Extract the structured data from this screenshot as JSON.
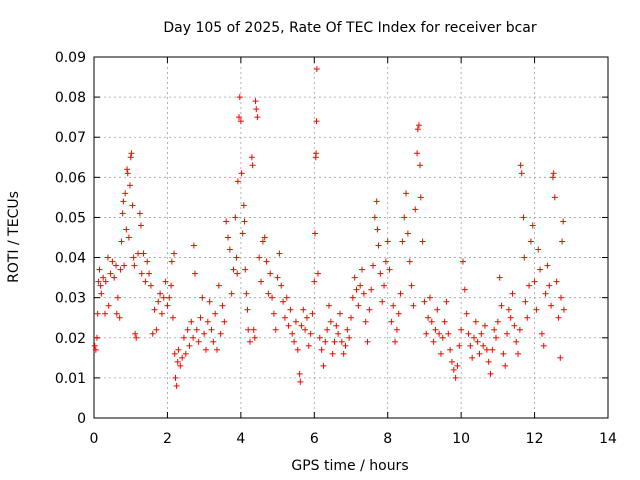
{
  "chart_data": {
    "type": "scatter",
    "title": "Day 105 of 2025, Rate Of TEC Index for receiver bcar",
    "xlabel": "GPS time / hours",
    "ylabel": "ROTI / TECUs",
    "xlim": [
      0,
      14
    ],
    "ylim": [
      0,
      0.09
    ],
    "x_ticks": [
      "0",
      "2",
      "4",
      "6",
      "8",
      "10",
      "12",
      "14"
    ],
    "y_ticks": [
      "0",
      "0.01",
      "0.02",
      "0.03",
      "0.04",
      "0.05",
      "0.06",
      "0.07",
      "0.08",
      "0.09"
    ],
    "grid": true,
    "marker": "+",
    "color": "#ff0000",
    "series": [
      {
        "points": [
          [
            0.02,
            0.018
          ],
          [
            0.05,
            0.017
          ],
          [
            0.08,
            0.02
          ],
          [
            0.1,
            0.026
          ],
          [
            0.12,
            0.034
          ],
          [
            0.15,
            0.037
          ],
          [
            0.18,
            0.033
          ],
          [
            0.2,
            0.031
          ],
          [
            0.25,
            0.035
          ],
          [
            0.3,
            0.026
          ],
          [
            0.32,
            0.034
          ],
          [
            0.38,
            0.04
          ],
          [
            0.4,
            0.028
          ],
          [
            0.45,
            0.036
          ],
          [
            0.5,
            0.039
          ],
          [
            0.55,
            0.035
          ],
          [
            0.6,
            0.038
          ],
          [
            0.62,
            0.026
          ],
          [
            0.65,
            0.03
          ],
          [
            0.7,
            0.025
          ],
          [
            0.72,
            0.037
          ],
          [
            0.75,
            0.044
          ],
          [
            0.78,
            0.051
          ],
          [
            0.8,
            0.054
          ],
          [
            0.82,
            0.038
          ],
          [
            0.85,
            0.056
          ],
          [
            0.88,
            0.047
          ],
          [
            0.9,
            0.062
          ],
          [
            0.92,
            0.061
          ],
          [
            0.95,
            0.045
          ],
          [
            0.98,
            0.058
          ],
          [
            1.0,
            0.065
          ],
          [
            1.02,
            0.066
          ],
          [
            1.05,
            0.053
          ],
          [
            1.08,
            0.04
          ],
          [
            1.1,
            0.038
          ],
          [
            1.12,
            0.021
          ],
          [
            1.15,
            0.02
          ],
          [
            1.2,
            0.041
          ],
          [
            1.25,
            0.051
          ],
          [
            1.28,
            0.048
          ],
          [
            1.3,
            0.036
          ],
          [
            1.35,
            0.041
          ],
          [
            1.4,
            0.034
          ],
          [
            1.45,
            0.039
          ],
          [
            1.5,
            0.036
          ],
          [
            1.55,
            0.033
          ],
          [
            1.6,
            0.021
          ],
          [
            1.65,
            0.027
          ],
          [
            1.7,
            0.022
          ],
          [
            1.75,
            0.029
          ],
          [
            1.8,
            0.031
          ],
          [
            1.85,
            0.026
          ],
          [
            1.9,
            0.03
          ],
          [
            1.95,
            0.034
          ],
          [
            2.0,
            0.028
          ],
          [
            2.05,
            0.03
          ],
          [
            2.1,
            0.033
          ],
          [
            2.12,
            0.039
          ],
          [
            2.15,
            0.025
          ],
          [
            2.18,
            0.041
          ],
          [
            2.2,
            0.016
          ],
          [
            2.22,
            0.01
          ],
          [
            2.25,
            0.008
          ],
          [
            2.28,
            0.014
          ],
          [
            2.3,
            0.017
          ],
          [
            2.35,
            0.013
          ],
          [
            2.4,
            0.015
          ],
          [
            2.45,
            0.02
          ],
          [
            2.5,
            0.016
          ],
          [
            2.55,
            0.022
          ],
          [
            2.6,
            0.018
          ],
          [
            2.65,
            0.024
          ],
          [
            2.7,
            0.02
          ],
          [
            2.72,
            0.043
          ],
          [
            2.75,
            0.036
          ],
          [
            2.8,
            0.022
          ],
          [
            2.85,
            0.019
          ],
          [
            2.9,
            0.025
          ],
          [
            2.95,
            0.03
          ],
          [
            3.0,
            0.021
          ],
          [
            3.05,
            0.017
          ],
          [
            3.1,
            0.024
          ],
          [
            3.15,
            0.029
          ],
          [
            3.2,
            0.022
          ],
          [
            3.25,
            0.019
          ],
          [
            3.3,
            0.026
          ],
          [
            3.35,
            0.017
          ],
          [
            3.4,
            0.033
          ],
          [
            3.45,
            0.021
          ],
          [
            3.5,
            0.028
          ],
          [
            3.55,
            0.024
          ],
          [
            3.6,
            0.049
          ],
          [
            3.65,
            0.045
          ],
          [
            3.7,
            0.042
          ],
          [
            3.75,
            0.031
          ],
          [
            3.8,
            0.037
          ],
          [
            3.85,
            0.05
          ],
          [
            3.88,
            0.04
          ],
          [
            3.9,
            0.036
          ],
          [
            3.92,
            0.059
          ],
          [
            3.95,
            0.075
          ],
          [
            3.97,
            0.08
          ],
          [
            4.0,
            0.074
          ],
          [
            4.02,
            0.061
          ],
          [
            4.05,
            0.046
          ],
          [
            4.08,
            0.053
          ],
          [
            4.1,
            0.049
          ],
          [
            4.12,
            0.037
          ],
          [
            4.15,
            0.031
          ],
          [
            4.18,
            0.027
          ],
          [
            4.2,
            0.022
          ],
          [
            4.25,
            0.019
          ],
          [
            4.3,
            0.065
          ],
          [
            4.32,
            0.063
          ],
          [
            4.35,
            0.022
          ],
          [
            4.38,
            0.02
          ],
          [
            4.4,
            0.079
          ],
          [
            4.42,
            0.077
          ],
          [
            4.45,
            0.075
          ],
          [
            4.5,
            0.04
          ],
          [
            4.55,
            0.034
          ],
          [
            4.6,
            0.044
          ],
          [
            4.65,
            0.045
          ],
          [
            4.7,
            0.039
          ],
          [
            4.75,
            0.031
          ],
          [
            4.8,
            0.036
          ],
          [
            4.85,
            0.03
          ],
          [
            4.9,
            0.026
          ],
          [
            4.95,
            0.022
          ],
          [
            5.0,
            0.035
          ],
          [
            5.05,
            0.041
          ],
          [
            5.1,
            0.033
          ],
          [
            5.15,
            0.029
          ],
          [
            5.2,
            0.025
          ],
          [
            5.25,
            0.03
          ],
          [
            5.3,
            0.023
          ],
          [
            5.35,
            0.027
          ],
          [
            5.4,
            0.021
          ],
          [
            5.45,
            0.019
          ],
          [
            5.5,
            0.024
          ],
          [
            5.55,
            0.017
          ],
          [
            5.6,
            0.011
          ],
          [
            5.62,
            0.009
          ],
          [
            5.65,
            0.023
          ],
          [
            5.7,
            0.027
          ],
          [
            5.75,
            0.022
          ],
          [
            5.8,
            0.025
          ],
          [
            5.85,
            0.018
          ],
          [
            5.9,
            0.021
          ],
          [
            5.95,
            0.026
          ],
          [
            6.0,
            0.034
          ],
          [
            6.02,
            0.046
          ],
          [
            6.04,
            0.065
          ],
          [
            6.05,
            0.066
          ],
          [
            6.06,
            0.074
          ],
          [
            6.07,
            0.087
          ],
          [
            6.1,
            0.036
          ],
          [
            6.15,
            0.02
          ],
          [
            6.2,
            0.017
          ],
          [
            6.25,
            0.013
          ],
          [
            6.3,
            0.019
          ],
          [
            6.35,
            0.022
          ],
          [
            6.4,
            0.028
          ],
          [
            6.45,
            0.024
          ],
          [
            6.5,
            0.016
          ],
          [
            6.55,
            0.019
          ],
          [
            6.6,
            0.023
          ],
          [
            6.65,
            0.021
          ],
          [
            6.7,
            0.026
          ],
          [
            6.75,
            0.019
          ],
          [
            6.8,
            0.016
          ],
          [
            6.85,
            0.018
          ],
          [
            6.9,
            0.022
          ],
          [
            6.95,
            0.02
          ],
          [
            7.0,
            0.025
          ],
          [
            7.05,
            0.03
          ],
          [
            7.1,
            0.035
          ],
          [
            7.15,
            0.032
          ],
          [
            7.2,
            0.028
          ],
          [
            7.25,
            0.033
          ],
          [
            7.3,
            0.037
          ],
          [
            7.35,
            0.031
          ],
          [
            7.4,
            0.024
          ],
          [
            7.45,
            0.019
          ],
          [
            7.5,
            0.027
          ],
          [
            7.55,
            0.032
          ],
          [
            7.6,
            0.038
          ],
          [
            7.65,
            0.05
          ],
          [
            7.7,
            0.054
          ],
          [
            7.72,
            0.047
          ],
          [
            7.75,
            0.043
          ],
          [
            7.8,
            0.036
          ],
          [
            7.85,
            0.029
          ],
          [
            7.9,
            0.033
          ],
          [
            7.95,
            0.039
          ],
          [
            8.0,
            0.044
          ],
          [
            8.05,
            0.037
          ],
          [
            8.1,
            0.024
          ],
          [
            8.15,
            0.028
          ],
          [
            8.2,
            0.019
          ],
          [
            8.25,
            0.022
          ],
          [
            8.3,
            0.026
          ],
          [
            8.35,
            0.031
          ],
          [
            8.4,
            0.044
          ],
          [
            8.45,
            0.05
          ],
          [
            8.5,
            0.056
          ],
          [
            8.55,
            0.046
          ],
          [
            8.6,
            0.039
          ],
          [
            8.65,
            0.033
          ],
          [
            8.7,
            0.028
          ],
          [
            8.75,
            0.052
          ],
          [
            8.8,
            0.066
          ],
          [
            8.82,
            0.072
          ],
          [
            8.85,
            0.073
          ],
          [
            8.88,
            0.063
          ],
          [
            8.9,
            0.055
          ],
          [
            8.95,
            0.044
          ],
          [
            9.0,
            0.029
          ],
          [
            9.05,
            0.021
          ],
          [
            9.1,
            0.025
          ],
          [
            9.15,
            0.03
          ],
          [
            9.2,
            0.024
          ],
          [
            9.25,
            0.019
          ],
          [
            9.3,
            0.022
          ],
          [
            9.35,
            0.027
          ],
          [
            9.4,
            0.021
          ],
          [
            9.45,
            0.016
          ],
          [
            9.5,
            0.02
          ],
          [
            9.55,
            0.024
          ],
          [
            9.6,
            0.029
          ],
          [
            9.65,
            0.021
          ],
          [
            9.7,
            0.017
          ],
          [
            9.75,
            0.014
          ],
          [
            9.8,
            0.012
          ],
          [
            9.85,
            0.01
          ],
          [
            9.9,
            0.013
          ],
          [
            9.95,
            0.018
          ],
          [
            10.0,
            0.022
          ],
          [
            10.05,
            0.039
          ],
          [
            10.1,
            0.032
          ],
          [
            10.15,
            0.026
          ],
          [
            10.2,
            0.021
          ],
          [
            10.25,
            0.018
          ],
          [
            10.3,
            0.015
          ],
          [
            10.35,
            0.02
          ],
          [
            10.4,
            0.024
          ],
          [
            10.45,
            0.019
          ],
          [
            10.5,
            0.016
          ],
          [
            10.55,
            0.021
          ],
          [
            10.6,
            0.018
          ],
          [
            10.65,
            0.023
          ],
          [
            10.7,
            0.017
          ],
          [
            10.75,
            0.014
          ],
          [
            10.8,
            0.011
          ],
          [
            10.85,
            0.017
          ],
          [
            10.9,
            0.022
          ],
          [
            10.95,
            0.02
          ],
          [
            11.0,
            0.024
          ],
          [
            11.05,
            0.035
          ],
          [
            11.1,
            0.028
          ],
          [
            11.15,
            0.016
          ],
          [
            11.2,
            0.013
          ],
          [
            11.25,
            0.021
          ],
          [
            11.3,
            0.027
          ],
          [
            11.35,
            0.025
          ],
          [
            11.4,
            0.031
          ],
          [
            11.45,
            0.023
          ],
          [
            11.5,
            0.019
          ],
          [
            11.55,
            0.016
          ],
          [
            11.6,
            0.022
          ],
          [
            11.62,
            0.063
          ],
          [
            11.65,
            0.061
          ],
          [
            11.7,
            0.05
          ],
          [
            11.72,
            0.04
          ],
          [
            11.75,
            0.029
          ],
          [
            11.8,
            0.025
          ],
          [
            11.85,
            0.033
          ],
          [
            11.9,
            0.044
          ],
          [
            11.95,
            0.048
          ],
          [
            12.0,
            0.034
          ],
          [
            12.05,
            0.027
          ],
          [
            12.1,
            0.042
          ],
          [
            12.15,
            0.037
          ],
          [
            12.2,
            0.021
          ],
          [
            12.25,
            0.018
          ],
          [
            12.3,
            0.031
          ],
          [
            12.35,
            0.038
          ],
          [
            12.4,
            0.033
          ],
          [
            12.45,
            0.028
          ],
          [
            12.5,
            0.06
          ],
          [
            12.52,
            0.061
          ],
          [
            12.55,
            0.055
          ],
          [
            12.6,
            0.034
          ],
          [
            12.65,
            0.025
          ],
          [
            12.7,
            0.015
          ],
          [
            12.72,
            0.03
          ],
          [
            12.75,
            0.044
          ],
          [
            12.78,
            0.049
          ],
          [
            12.8,
            0.027
          ]
        ]
      }
    ]
  }
}
